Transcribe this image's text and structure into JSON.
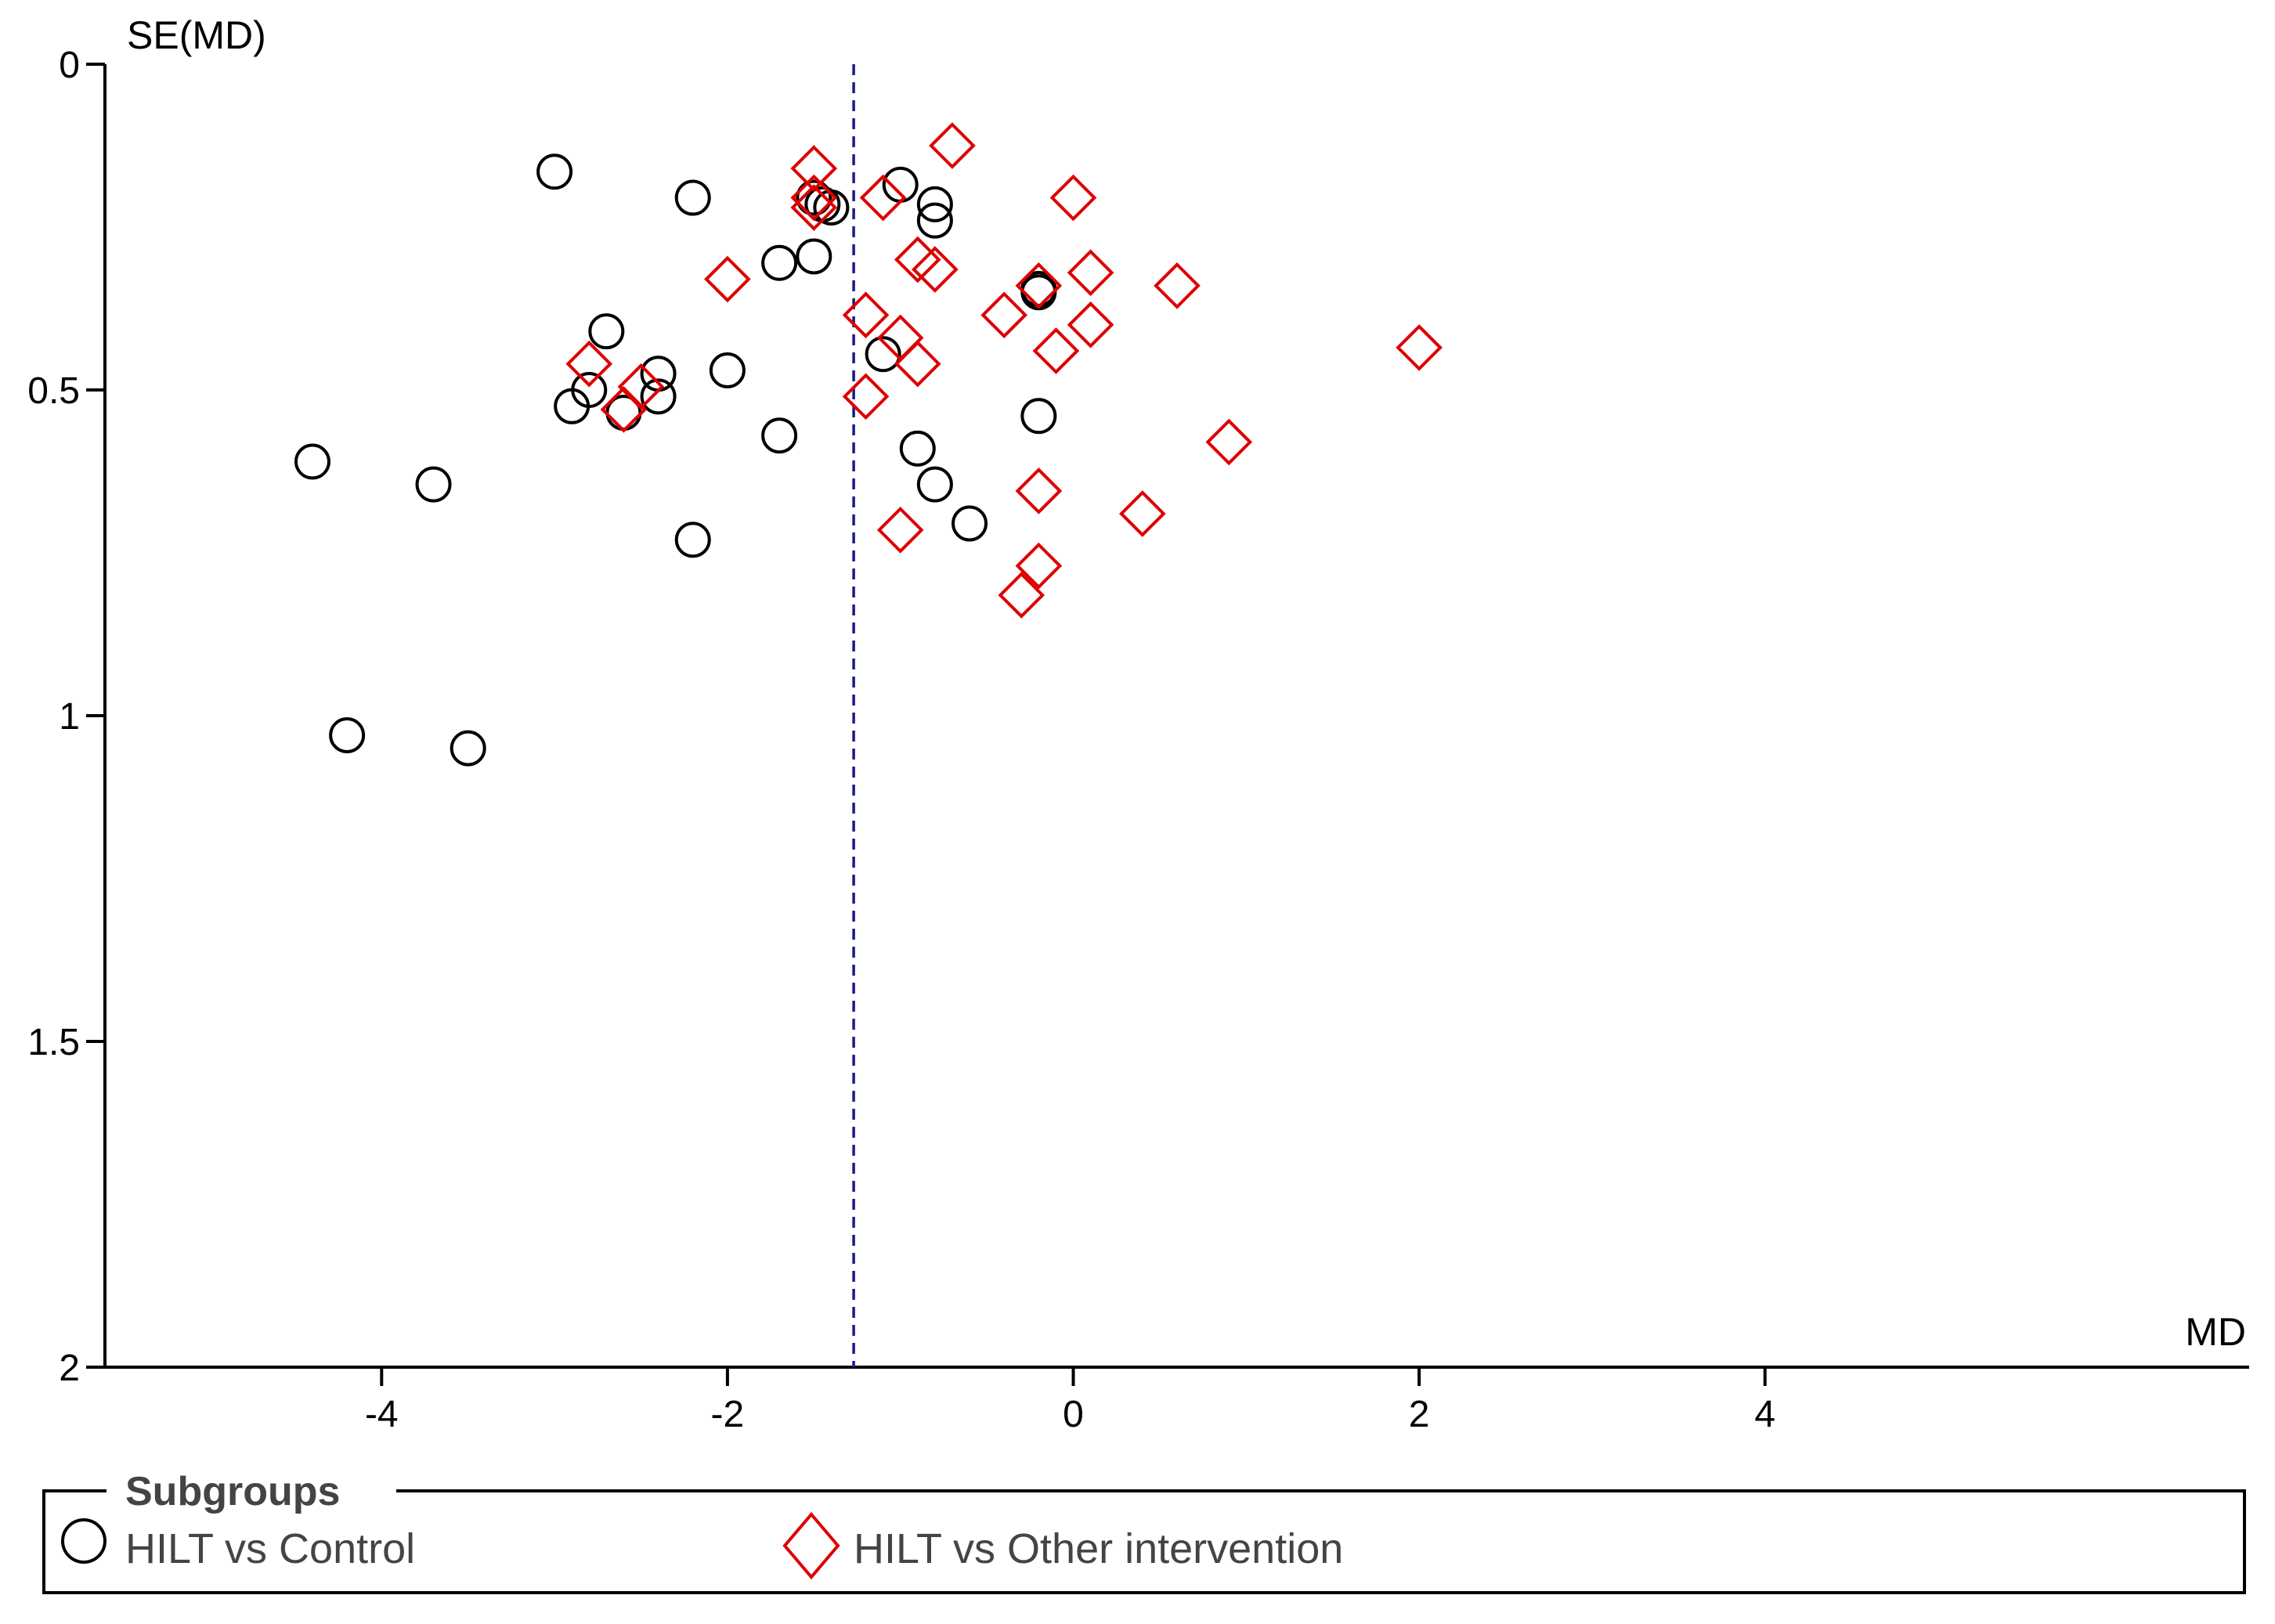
{
  "chart_data": {
    "type": "scatter",
    "title": "",
    "xlabel": "MD",
    "ylabel": "SE(MD)",
    "xlim": [
      -5.6,
      6.8
    ],
    "ylim": [
      0,
      2
    ],
    "y_inverted": true,
    "x_ticks": [
      "-4",
      "-2",
      "0",
      "2",
      "4"
    ],
    "y_ticks": [
      "0",
      "0.5",
      "1",
      "1.5",
      "2"
    ],
    "reference_line": {
      "x": -1.27,
      "style": "dashed",
      "color": "#1a1a8c"
    },
    "legend": {
      "title": "Subgroups",
      "position": "bottom"
    },
    "series": [
      {
        "name": "HILT vs Control",
        "marker": "circle",
        "color": "#000000",
        "points": [
          {
            "x": -3.0,
            "y": 0.165
          },
          {
            "x": -2.2,
            "y": 0.205
          },
          {
            "x": -1.5,
            "y": 0.205
          },
          {
            "x": -1.45,
            "y": 0.215
          },
          {
            "x": -1.4,
            "y": 0.22
          },
          {
            "x": -1.0,
            "y": 0.185
          },
          {
            "x": -0.8,
            "y": 0.215
          },
          {
            "x": -0.8,
            "y": 0.24
          },
          {
            "x": -1.7,
            "y": 0.305
          },
          {
            "x": -1.5,
            "y": 0.295
          },
          {
            "x": -0.2,
            "y": 0.345
          },
          {
            "x": -0.2,
            "y": 0.35
          },
          {
            "x": -2.7,
            "y": 0.41
          },
          {
            "x": -1.1,
            "y": 0.445
          },
          {
            "x": -2.0,
            "y": 0.47
          },
          {
            "x": -2.4,
            "y": 0.475
          },
          {
            "x": -2.8,
            "y": 0.5
          },
          {
            "x": -2.4,
            "y": 0.51
          },
          {
            "x": -2.9,
            "y": 0.525
          },
          {
            "x": -2.6,
            "y": 0.535
          },
          {
            "x": -0.2,
            "y": 0.54
          },
          {
            "x": -1.7,
            "y": 0.57
          },
          {
            "x": -0.9,
            "y": 0.59
          },
          {
            "x": -4.4,
            "y": 0.61
          },
          {
            "x": -3.7,
            "y": 0.645
          },
          {
            "x": -0.8,
            "y": 0.645
          },
          {
            "x": -0.6,
            "y": 0.705
          },
          {
            "x": -2.2,
            "y": 0.73
          },
          {
            "x": -4.2,
            "y": 1.03
          },
          {
            "x": -3.5,
            "y": 1.05
          }
        ]
      },
      {
        "name": "HILT vs Other intervention",
        "marker": "diamond",
        "color": "#dd0000",
        "points": [
          {
            "x": -0.7,
            "y": 0.125
          },
          {
            "x": -1.5,
            "y": 0.16
          },
          {
            "x": -1.5,
            "y": 0.205
          },
          {
            "x": -1.5,
            "y": 0.22
          },
          {
            "x": -1.1,
            "y": 0.205
          },
          {
            "x": 0.0,
            "y": 0.205
          },
          {
            "x": -0.9,
            "y": 0.3
          },
          {
            "x": -0.8,
            "y": 0.315
          },
          {
            "x": 0.1,
            "y": 0.32
          },
          {
            "x": -2.0,
            "y": 0.33
          },
          {
            "x": 0.6,
            "y": 0.34
          },
          {
            "x": -0.2,
            "y": 0.34
          },
          {
            "x": -1.2,
            "y": 0.385
          },
          {
            "x": -0.4,
            "y": 0.385
          },
          {
            "x": 0.1,
            "y": 0.4
          },
          {
            "x": -1.0,
            "y": 0.42
          },
          {
            "x": -0.1,
            "y": 0.44
          },
          {
            "x": 2.0,
            "y": 0.435
          },
          {
            "x": -0.9,
            "y": 0.46
          },
          {
            "x": -2.8,
            "y": 0.46
          },
          {
            "x": -2.5,
            "y": 0.495
          },
          {
            "x": -1.2,
            "y": 0.51
          },
          {
            "x": -2.6,
            "y": 0.53
          },
          {
            "x": 0.9,
            "y": 0.58
          },
          {
            "x": -0.2,
            "y": 0.655
          },
          {
            "x": 0.4,
            "y": 0.69
          },
          {
            "x": -1.0,
            "y": 0.715
          },
          {
            "x": -0.2,
            "y": 0.77
          },
          {
            "x": -0.3,
            "y": 0.815
          }
        ]
      }
    ]
  }
}
